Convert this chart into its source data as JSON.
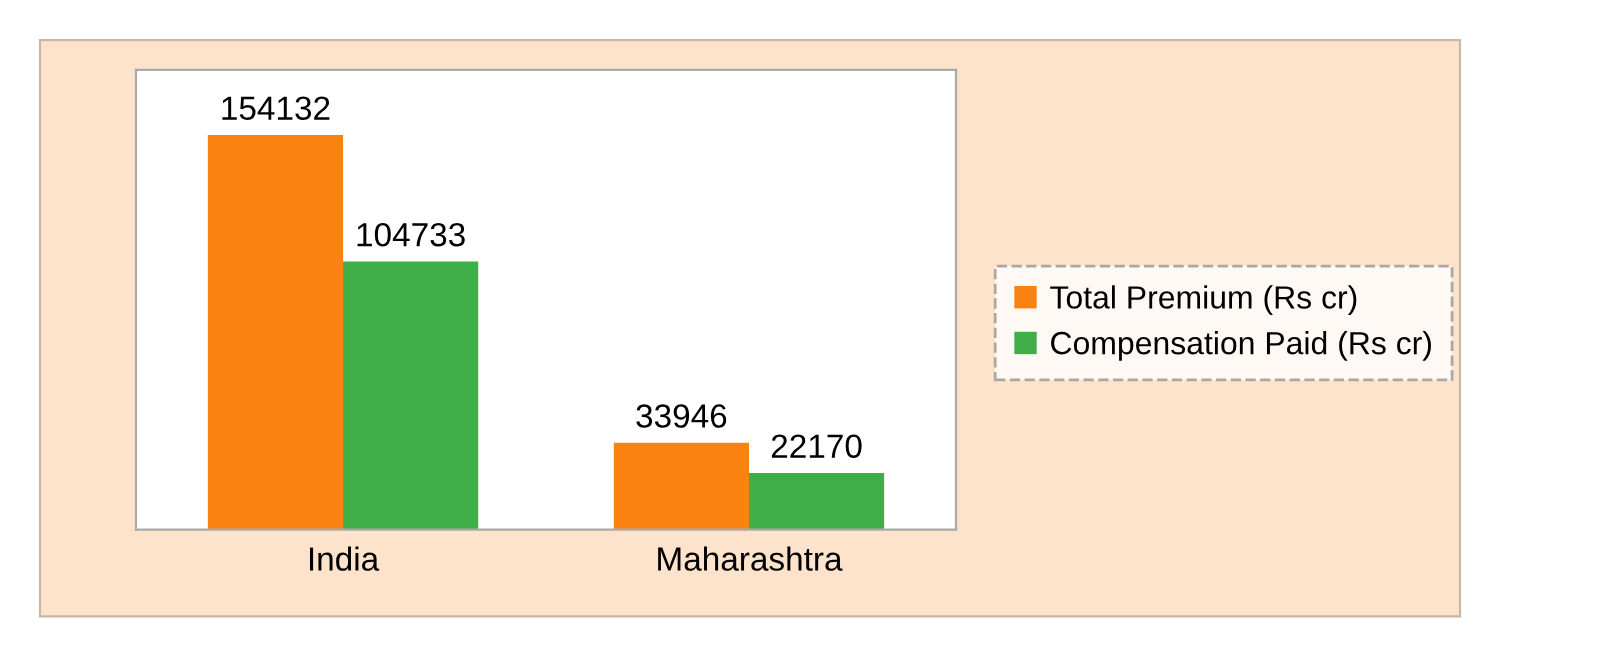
{
  "chart_data": {
    "type": "bar",
    "categories": [
      "India",
      "Maharashtra"
    ],
    "series": [
      {
        "name": "Total Premium (Rs cr)",
        "color": "#f98211",
        "values": [
          154132,
          33946
        ]
      },
      {
        "name": "Compensation Paid (Rs cr)",
        "color": "#3fae49",
        "values": [
          104733,
          22170
        ]
      }
    ],
    "data_labels": true,
    "legend": "right",
    "grid": false
  }
}
